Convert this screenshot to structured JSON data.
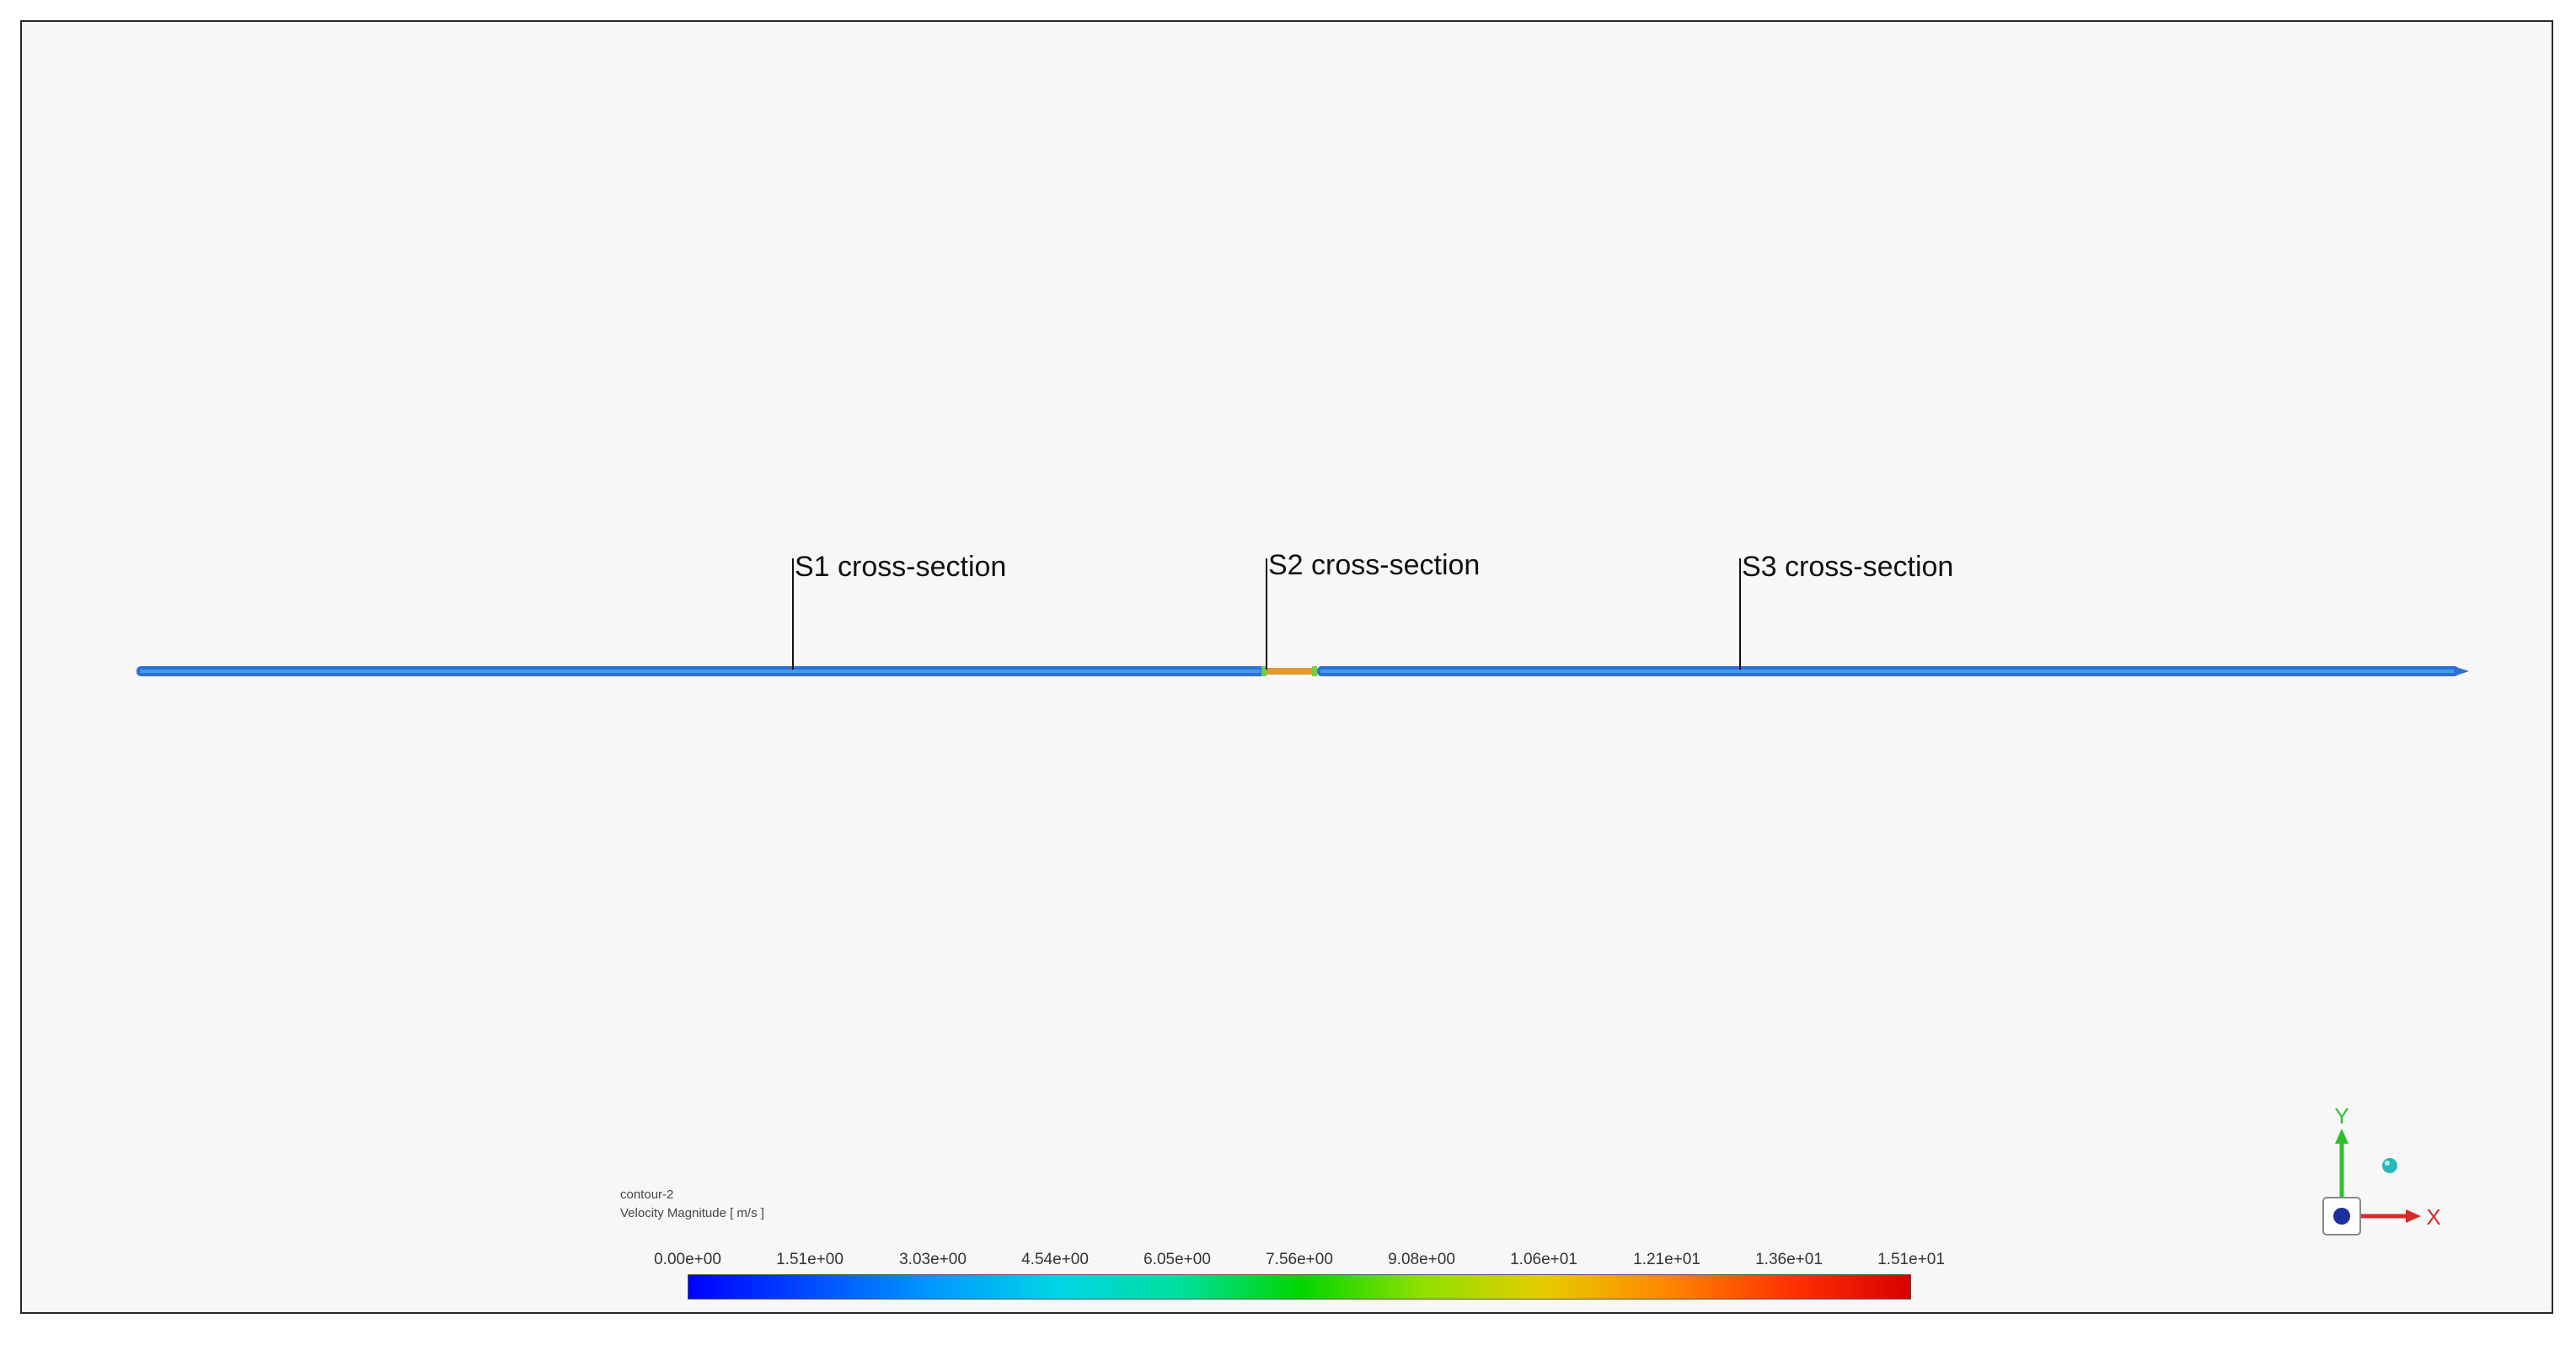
{
  "sections": [
    {
      "label": "S1 cross-section"
    },
    {
      "label": "S2 cross-section"
    },
    {
      "label": "S3 cross-section"
    }
  ],
  "legend": {
    "name": "contour-2",
    "quantity": "Velocity Magnitude [ m/s ]",
    "min_value": 0.0,
    "max_value": 15.1,
    "ticks": [
      "0.00e+00",
      "1.51e+00",
      "3.03e+00",
      "4.54e+00",
      "6.05e+00",
      "7.56e+00",
      "9.08e+00",
      "1.06e+01",
      "1.21e+01",
      "1.36e+01",
      "1.51e+01"
    ],
    "colormap": [
      "#0000ff",
      "#004cff",
      "#0099ff",
      "#00d5e5",
      "#00e0a0",
      "#00d600",
      "#8fe000",
      "#e6cc00",
      "#ff8800",
      "#ff3300",
      "#d90000"
    ]
  },
  "pipe": {
    "body_color": "#2f6fd6",
    "core_color": "#3aa0e8",
    "constriction_color": "#e09a30"
  },
  "triad": {
    "y_label": "Y",
    "x_label": "X",
    "y_color": "#2ec02e",
    "x_color": "#d42a2a",
    "z_color": "#1a2fa0"
  },
  "colors": {
    "viewport_bg": "#f7f7f7",
    "frame": "#2a2a2a"
  }
}
